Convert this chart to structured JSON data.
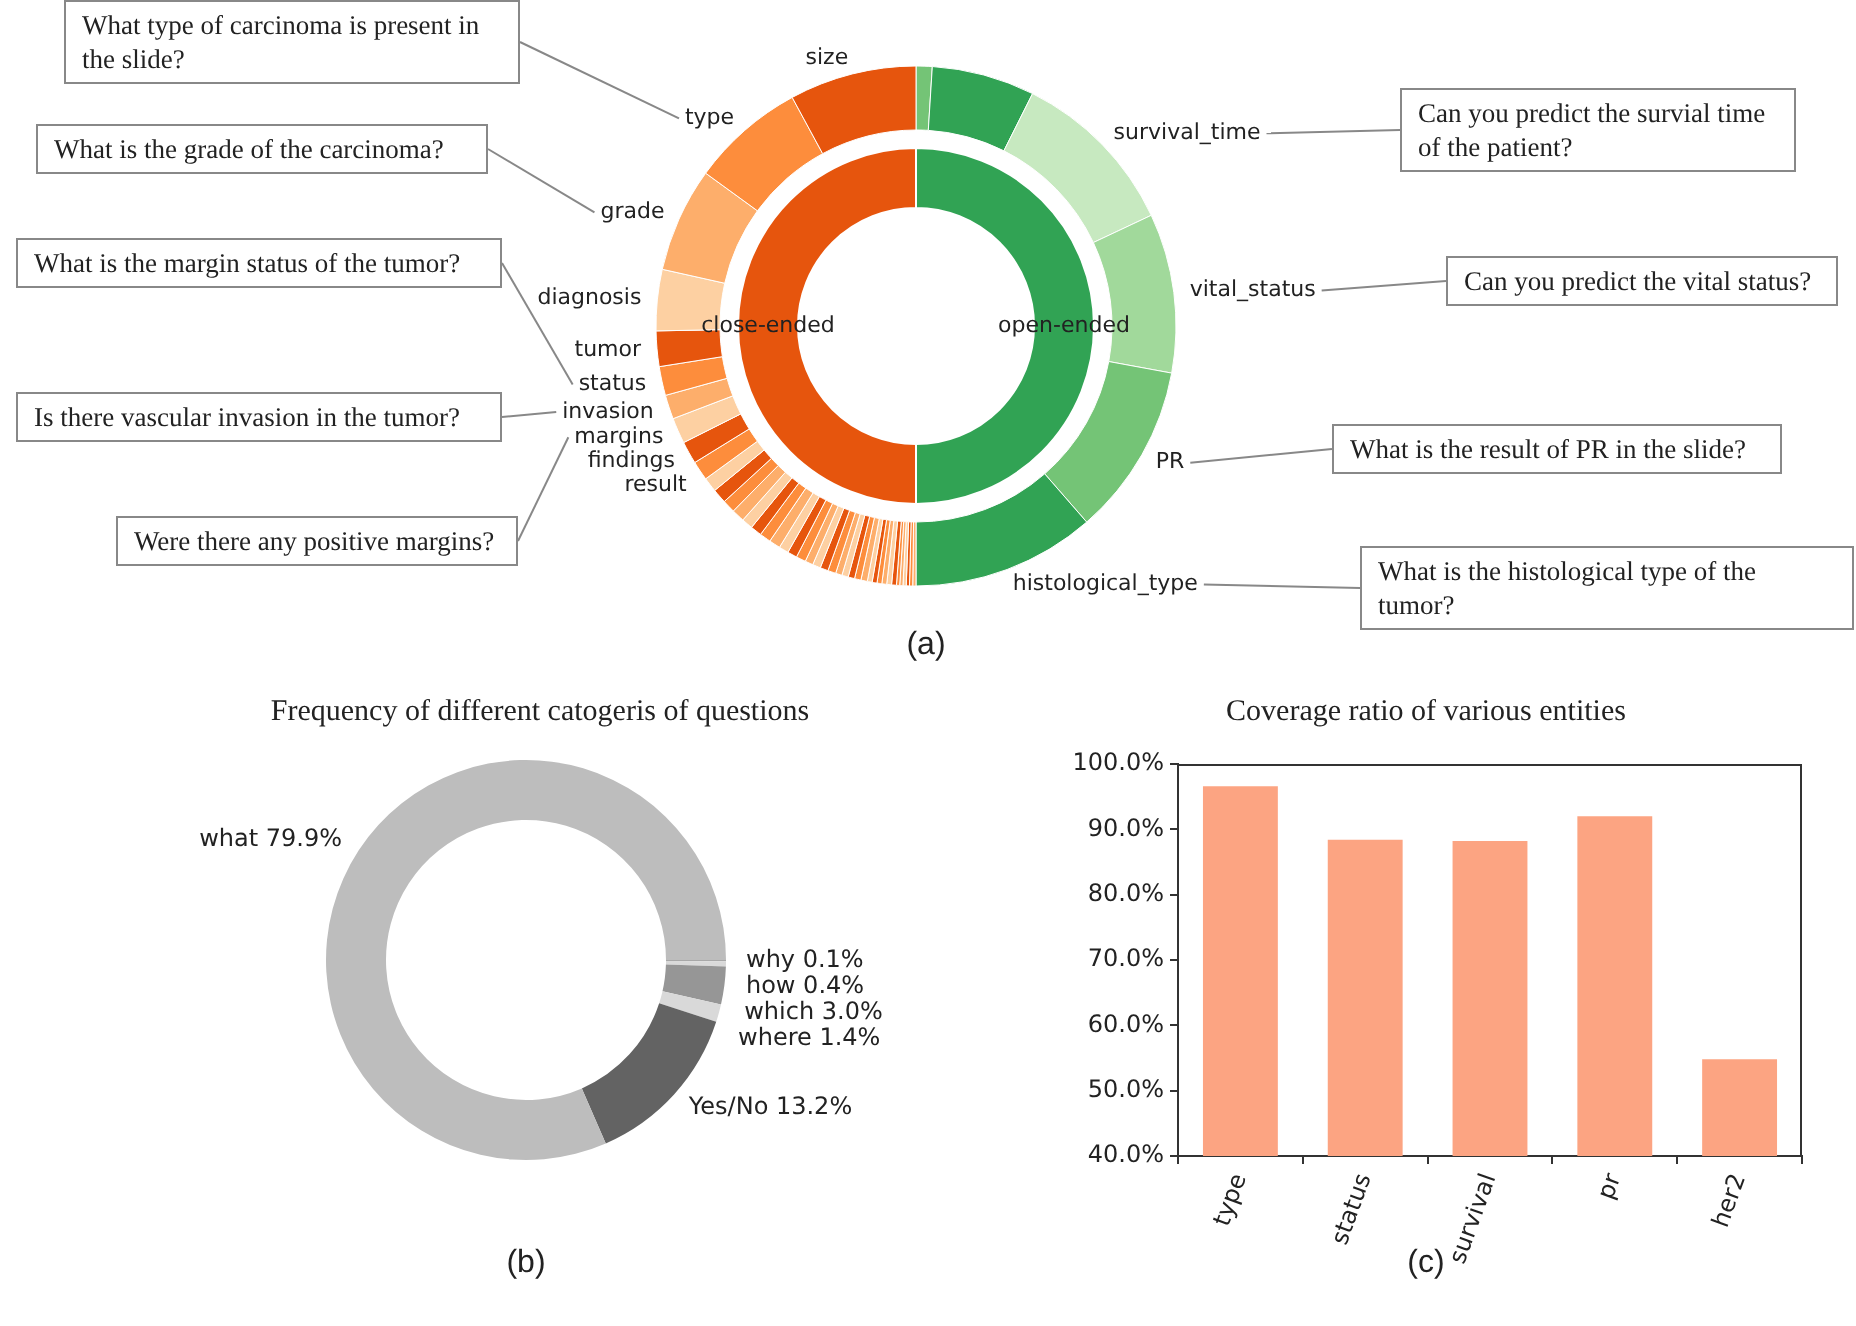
{
  "chart_data": [
    {
      "type": "donut",
      "categories": [
        null,
        null,
        "survival_time",
        "vital_status",
        "PR",
        "histological_type",
        null,
        null,
        null,
        null,
        null,
        null,
        null,
        null,
        null,
        null,
        null,
        null,
        null,
        null,
        null,
        null,
        null,
        null,
        null,
        null,
        null,
        null,
        null,
        null,
        null,
        null,
        null,
        null,
        null,
        null,
        null,
        null,
        "result",
        "findings",
        "margins",
        "invasion",
        "status",
        "tumor",
        "diagnosis",
        "grade",
        "type",
        "size"
      ],
      "values": [
        1.0,
        6.4,
        10.6,
        9.9,
        10.7,
        11.4,
        0.2,
        0.2,
        0.2,
        0.2,
        0.2,
        0.2,
        0.3,
        0.3,
        0.3,
        0.3,
        0.3,
        0.3,
        0.4,
        0.4,
        0.4,
        0.4,
        0.4,
        0.5,
        0.5,
        0.5,
        0.5,
        0.6,
        0.6,
        0.6,
        0.7,
        0.7,
        0.7,
        0.7,
        0.8,
        0.8,
        0.9,
        0.9,
        1.2,
        1.4,
        1.6,
        1.5,
        1.8,
        2.2,
        3.8,
        6.5,
        7.1,
        7.9
      ],
      "colors": [
        "#74c476",
        "#31a354",
        "#c7e9c0",
        "#a1d99b",
        "#74c476",
        "#31a354",
        "#fdae6b",
        "#fd8d3c",
        "#e6550d",
        "#fdd0a2",
        "#fdae6b",
        "#fd8d3c",
        "#e6550d",
        "#fdd0a2",
        "#fdae6b",
        "#fd8d3c",
        "#e6550d",
        "#fdd0a2",
        "#fdae6b",
        "#fd8d3c",
        "#e6550d",
        "#fdd0a2",
        "#fdae6b",
        "#fd8d3c",
        "#e6550d",
        "#fdd0a2",
        "#fdae6b",
        "#fd8d3c",
        "#e6550d",
        "#fdd0a2",
        "#fdae6b",
        "#fd8d3c",
        "#e6550d",
        "#fdd0a2",
        "#fdae6b",
        "#fd8d3c",
        "#e6550d",
        "#fdd0a2",
        "#fd8d3c",
        "#e6550d",
        "#fdd0a2",
        "#fdae6b",
        "#fd8d3c",
        "#e6550d",
        "#fdd0a2",
        "#fdae6b",
        "#fd8d3c",
        "#e6550d"
      ],
      "annotations": [
        {
          "text": "What type of carcinoma is present in the slide?",
          "x": "type"
        },
        {
          "text": "What is the grade of the carcinoma?",
          "x": "grade"
        },
        {
          "text": "What is the margin status of the tumor?",
          "x": "status"
        },
        {
          "text": "Is there vascular invasion in the tumor?",
          "x": "invasion"
        },
        {
          "text": "Were there any positive margins?",
          "x": "margins"
        },
        {
          "text": "Can you predict the survial time of the patient?",
          "x": "survival_time"
        },
        {
          "text": "Can you predict the vital status?",
          "x": "vital_status"
        },
        {
          "text": "What is the result of PR in the slide?",
          "x": "PR"
        },
        {
          "text": "What is the histological type of the tumor?",
          "x": "histological_type"
        },
        "(a)"
      ]
    },
    {
      "type": "donut",
      "categories": [
        "open-ended",
        "close-ended"
      ],
      "values": [
        50,
        50
      ],
      "colors": [
        "#31a354",
        "#e6550d"
      ]
    },
    {
      "type": "donut",
      "title": "Frequency of different catogeris of questions",
      "categories": [
        "why",
        "how",
        "which",
        "where",
        "Yes/No",
        "what"
      ],
      "values": [
        0.1,
        0.4,
        3.0,
        1.4,
        13.2,
        79.9
      ],
      "value_labels": [
        "0.1%",
        "0.4%",
        "3.0%",
        "1.4%",
        "13.2%",
        "79.9%"
      ],
      "colors": [
        "#a8a8a8",
        "#d9d9d9",
        "#969696",
        "#d9d9d9",
        "#636363",
        "#bdbdbd"
      ],
      "annotations": [
        "(b)"
      ]
    },
    {
      "type": "bar",
      "title": "Coverage ratio of various entities",
      "categories": [
        "type",
        "status",
        "survival",
        "pr",
        "her2"
      ],
      "values": [
        96.6,
        88.4,
        88.2,
        92.0,
        54.8
      ],
      "color": "#fca482",
      "ylim": [
        40,
        100
      ],
      "yticks": [
        {
          "value": 40,
          "label": "40.0%"
        },
        {
          "value": 50,
          "label": "50.0%"
        },
        {
          "value": 60,
          "label": "60.0%"
        },
        {
          "value": 70,
          "label": "70.0%"
        },
        {
          "value": 80,
          "label": "80.0%"
        },
        {
          "value": 90,
          "label": "90.0%"
        },
        {
          "value": 100,
          "label": "100.0%"
        }
      ],
      "grid": false,
      "annotations": [
        "(c)"
      ]
    }
  ]
}
